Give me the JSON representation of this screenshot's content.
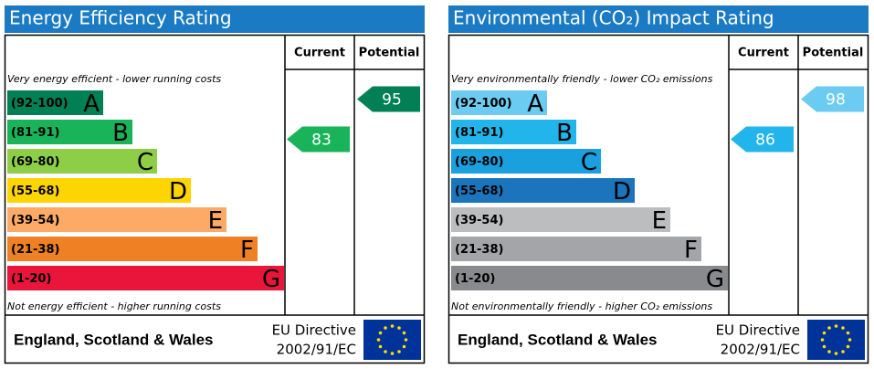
{
  "panels": [
    {
      "title": "Energy Efficiency Rating",
      "columns": [
        "Current",
        "Potential"
      ],
      "top_note": "Very energy efficient - lower running costs",
      "bottom_note": "Not energy efficient - higher running costs",
      "bands": [
        {
          "range": "(92-100)",
          "letter": "A",
          "color": "#008054"
        },
        {
          "range": "(81-91)",
          "letter": "B",
          "color": "#19b459"
        },
        {
          "range": "(69-80)",
          "letter": "C",
          "color": "#8dce46"
        },
        {
          "range": "(55-68)",
          "letter": "D",
          "color": "#ffd500"
        },
        {
          "range": "(39-54)",
          "letter": "E",
          "color": "#fcaa65"
        },
        {
          "range": "(21-38)",
          "letter": "F",
          "color": "#ef8023"
        },
        {
          "range": "(1-20)",
          "letter": "G",
          "color": "#e9153b"
        }
      ],
      "current": 83,
      "potential": 95,
      "footer": {
        "region": "England, Scotland & Wales",
        "directive": [
          "EU Directive",
          "2002/91/EC"
        ]
      }
    },
    {
      "title": "Environmental (CO₂) Impact Rating",
      "columns": [
        "Current",
        "Potential"
      ],
      "top_note": "Very environmentally friendly - lower CO₂ emissions",
      "bottom_note": "Not environmentally friendly - higher CO₂ emissions",
      "bands": [
        {
          "range": "(92-100)",
          "letter": "A",
          "color": "#6bcbf1"
        },
        {
          "range": "(81-91)",
          "letter": "B",
          "color": "#22b5eb"
        },
        {
          "range": "(69-80)",
          "letter": "C",
          "color": "#1a9fdf"
        },
        {
          "range": "(55-68)",
          "letter": "D",
          "color": "#1c75bc"
        },
        {
          "range": "(39-54)",
          "letter": "E",
          "color": "#bbbdbf"
        },
        {
          "range": "(21-38)",
          "letter": "F",
          "color": "#a3a5a8"
        },
        {
          "range": "(1-20)",
          "letter": "G",
          "color": "#898a8d"
        }
      ],
      "current": 86,
      "potential": 98,
      "footer": {
        "region": "England, Scotland & Wales",
        "directive": [
          "EU Directive",
          "2002/91/EC"
        ]
      }
    }
  ]
}
